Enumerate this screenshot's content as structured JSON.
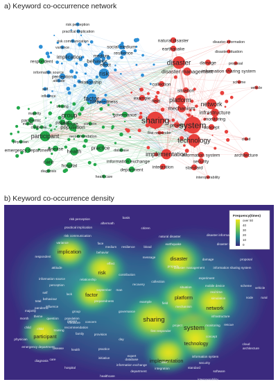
{
  "titles": {
    "network": "a) Keyword co-occurrence network",
    "density": "b) Keyword co-occurrence density"
  },
  "colors": {
    "red": "#e8403c",
    "green": "#22a84a",
    "blue": "#2e8fd6",
    "density_low": "#3b2a7e",
    "density_high": "#f4e51a"
  },
  "chart_data": [
    {
      "type": "network",
      "title": "a) Keyword co-occurrence network",
      "clusters": [
        {
          "color": "blue",
          "keywords": [
            "risk perception",
            "practical implication",
            "risk communication",
            "variance",
            "implication",
            "behavior",
            "social medium",
            "resilience",
            "medium",
            "effect",
            "risk",
            "relationship",
            "perception",
            "information source",
            "self",
            "influence",
            "attitude",
            "factor",
            "preparedness"
          ]
        },
        {
          "color": "red",
          "keywords": [
            "natural disaster",
            "earthquake",
            "disaster information",
            "disaster situation",
            "disaster",
            "disaster management",
            "damage",
            "proposal",
            "information sharing system",
            "scheme",
            "vehicle",
            "sharing",
            "system",
            "platform",
            "network",
            "infrastructure",
            "technology",
            "mechanism",
            "situation",
            "collection",
            "implementation",
            "information system",
            "security",
            "architecture",
            "integration",
            "standard",
            "interoperability",
            "cloud",
            "concept",
            "monitoring",
            "first responder",
            "field",
            "example",
            "project"
          ]
        },
        {
          "color": "green",
          "keywords": [
            "participant",
            "group",
            "pandemic",
            "respondent",
            "population",
            "emergency department",
            "physician",
            "patient",
            "care",
            "hospital",
            "health",
            "practice",
            "disease",
            "department",
            "information exchange",
            "training",
            "measure",
            "concern",
            "majority",
            "child",
            "month",
            "theme",
            "diagnosis",
            "healthcare",
            "recommendation",
            "governance",
            "database"
          ]
        }
      ]
    },
    {
      "type": "heatmap",
      "title": "b) Keyword co-occurrence density",
      "legend": {
        "title": "Frequency(times)",
        "ticks": [
          "over 50",
          "40",
          "30",
          "20",
          "10",
          "0"
        ],
        "range": [
          0,
          50
        ]
      },
      "hotspots": [
        {
          "keyword": "sharing",
          "intensity": 1.0
        },
        {
          "keyword": "system",
          "intensity": 1.0
        },
        {
          "keyword": "disaster",
          "intensity": 0.8
        },
        {
          "keyword": "technology",
          "intensity": 0.75
        },
        {
          "keyword": "platform",
          "intensity": 0.7
        },
        {
          "keyword": "network",
          "intensity": 0.7
        },
        {
          "keyword": "implementation",
          "intensity": 0.6
        },
        {
          "keyword": "risk",
          "intensity": 0.6
        },
        {
          "keyword": "factor",
          "intensity": 0.55
        },
        {
          "keyword": "participant",
          "intensity": 0.55
        },
        {
          "keyword": "implication",
          "intensity": 0.5
        }
      ],
      "labels": [
        "risk perception",
        "practical implication",
        "risk communication",
        "variance",
        "aftermath",
        "basis",
        "citizen",
        "natural disaster",
        "earthquake",
        "disaster information",
        "disaster situation",
        "implication",
        "face",
        "behavior",
        "medium",
        "resilience",
        "blood",
        "message",
        "disaster",
        "property",
        "disaster management",
        "damage",
        "proposal",
        "information sharing system",
        "respondent",
        "attitude",
        "effect",
        "risk",
        "contribution",
        "recovery",
        "information source",
        "perception",
        "relationship",
        "collection",
        "situation",
        "experiment",
        "mobile device",
        "real time",
        "scheme",
        "vehicle",
        "self",
        "behaviour",
        "lack",
        "factor",
        "platform",
        "simulation",
        "node",
        "rural",
        "total",
        "influence",
        "preparedness",
        "september",
        "man",
        "example",
        "field",
        "mechanism",
        "network",
        "infrastructure",
        "majority",
        "child",
        "group",
        "governance",
        "patient",
        "population",
        "sharing",
        "system",
        "monitoring",
        "month",
        "theme",
        "participant",
        "measure",
        "concern",
        "first responder",
        "concept",
        "rescue",
        "training",
        "family",
        "provision",
        "project",
        "technology",
        "cloud",
        "child",
        "pandemic",
        "emergency department",
        "disease",
        "health",
        "practice",
        "initiative",
        "database",
        "information exchange",
        "implementation",
        "information system",
        "security",
        "architecture",
        "physician",
        "hospital",
        "care",
        "diagnosis",
        "department",
        "integration",
        "standard",
        "healthcare",
        "user",
        "software",
        "interoperability",
        "expert",
        "recommendation",
        "day",
        "question"
      ]
    }
  ]
}
